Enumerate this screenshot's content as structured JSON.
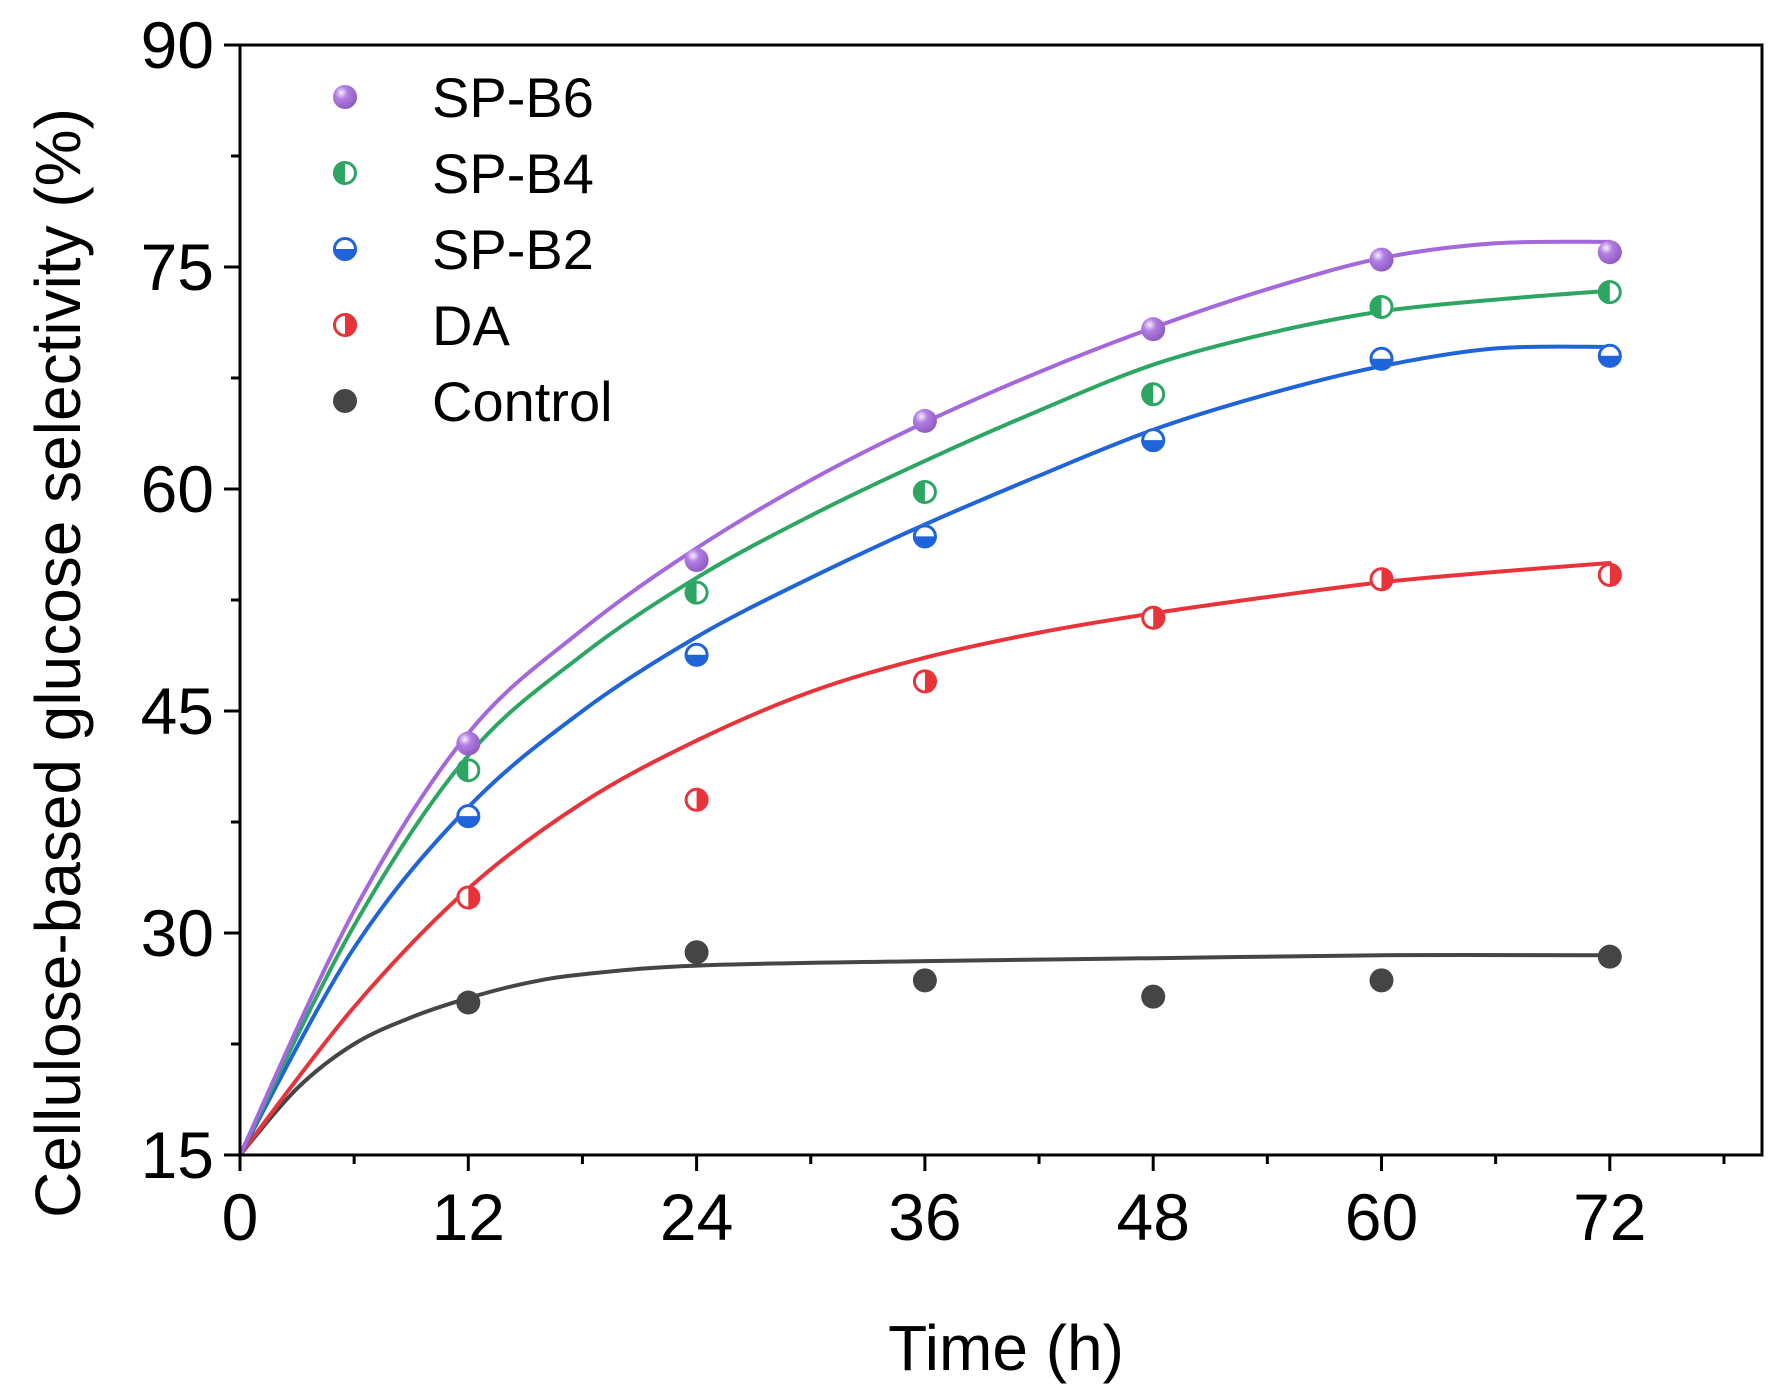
{
  "chart_data": {
    "type": "scatter",
    "title": "",
    "xlabel": "Time (h)",
    "ylabel": "Cellulose-based glucose selectivity (%)",
    "xlim": [
      0,
      80
    ],
    "ylim": [
      15,
      90
    ],
    "xticks": [
      0,
      12,
      24,
      36,
      48,
      60,
      72
    ],
    "yticks": [
      15,
      30,
      45,
      60,
      75,
      90
    ],
    "legend_position": "top-left",
    "series": [
      {
        "name": "SP-B6",
        "color": "#a567de",
        "marker": "sphere",
        "x": [
          12,
          24,
          36,
          48,
          60,
          72
        ],
        "values": [
          42.8,
          55.2,
          64.6,
          70.8,
          75.5,
          76.0
        ],
        "fit": [
          [
            0,
            15
          ],
          [
            6,
            31.5
          ],
          [
            12,
            43.5
          ],
          [
            18,
            50.5
          ],
          [
            24,
            56.0
          ],
          [
            30,
            60.6
          ],
          [
            36,
            64.5
          ],
          [
            42,
            67.9
          ],
          [
            48,
            70.9
          ],
          [
            54,
            73.5
          ],
          [
            60,
            75.6
          ],
          [
            66,
            76.6
          ],
          [
            72,
            76.7
          ]
        ]
      },
      {
        "name": "SP-B4",
        "color": "#2ea663",
        "marker": "half-left",
        "x": [
          12,
          24,
          36,
          48,
          60,
          72
        ],
        "values": [
          41.0,
          53.0,
          59.8,
          66.4,
          72.3,
          73.3
        ],
        "fit": [
          [
            0,
            15
          ],
          [
            6,
            30.5
          ],
          [
            12,
            42.0
          ],
          [
            18,
            48.8
          ],
          [
            24,
            54.0
          ],
          [
            30,
            58.2
          ],
          [
            36,
            61.9
          ],
          [
            42,
            65.3
          ],
          [
            48,
            68.4
          ],
          [
            54,
            70.5
          ],
          [
            60,
            72.0
          ],
          [
            66,
            72.8
          ],
          [
            72,
            73.4
          ]
        ]
      },
      {
        "name": "SP-B2",
        "color": "#1f64d8",
        "marker": "half-bottom",
        "x": [
          12,
          24,
          36,
          48,
          60,
          72
        ],
        "values": [
          37.9,
          48.8,
          56.8,
          63.3,
          68.8,
          69.0
        ],
        "fit": [
          [
            0,
            15
          ],
          [
            6,
            29.0
          ],
          [
            12,
            38.5
          ],
          [
            18,
            45.0
          ],
          [
            24,
            50.0
          ],
          [
            30,
            54.0
          ],
          [
            36,
            57.6
          ],
          [
            42,
            60.9
          ],
          [
            48,
            64.0
          ],
          [
            54,
            66.4
          ],
          [
            60,
            68.3
          ],
          [
            66,
            69.5
          ],
          [
            72,
            69.6
          ]
        ]
      },
      {
        "name": "DA",
        "color": "#e8333a",
        "marker": "half-right",
        "x": [
          12,
          24,
          36,
          48,
          60,
          72
        ],
        "values": [
          32.4,
          39.0,
          47.0,
          51.3,
          53.9,
          54.2
        ],
        "fit": [
          [
            0,
            15
          ],
          [
            6,
            25.0
          ],
          [
            12,
            33.0
          ],
          [
            18,
            38.8
          ],
          [
            24,
            43.0
          ],
          [
            30,
            46.3
          ],
          [
            36,
            48.6
          ],
          [
            42,
            50.3
          ],
          [
            48,
            51.6
          ],
          [
            54,
            52.7
          ],
          [
            60,
            53.7
          ],
          [
            66,
            54.4
          ],
          [
            72,
            55.0
          ]
        ]
      },
      {
        "name": "Control",
        "color": "#454545",
        "marker": "filled",
        "x": [
          12,
          24,
          36,
          48,
          60,
          72
        ],
        "values": [
          25.3,
          28.7,
          26.8,
          25.7,
          26.8,
          28.4
        ],
        "fit": [
          [
            0,
            15
          ],
          [
            3,
            19.5
          ],
          [
            6,
            22.5
          ],
          [
            9,
            24.3
          ],
          [
            12,
            25.6
          ],
          [
            15,
            26.6
          ],
          [
            18,
            27.2
          ],
          [
            24,
            27.8
          ],
          [
            36,
            28.1
          ],
          [
            48,
            28.3
          ],
          [
            60,
            28.5
          ],
          [
            72,
            28.5
          ]
        ]
      }
    ]
  }
}
